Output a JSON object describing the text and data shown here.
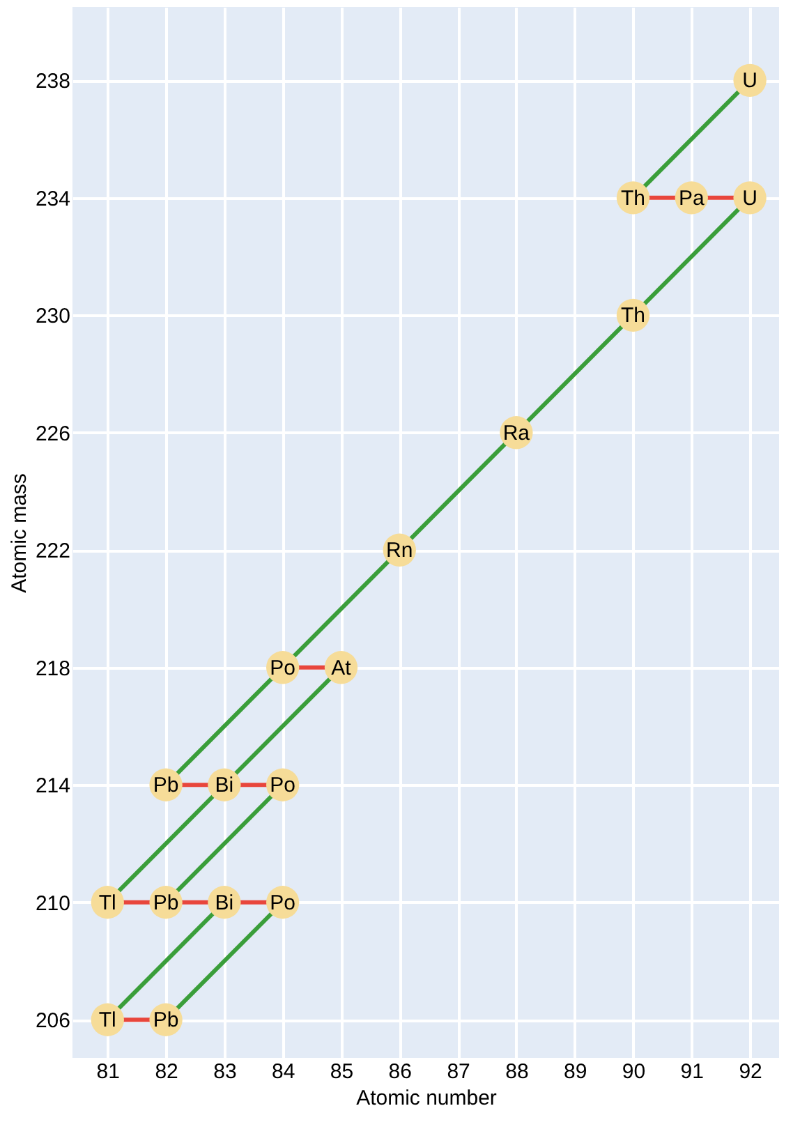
{
  "chart_data": {
    "type": "scatter",
    "xlabel": "Atomic number",
    "ylabel": "Atomic mass",
    "xlim": [
      80.4,
      92.5
    ],
    "ylim": [
      204.7,
      240.5
    ],
    "xticks": [
      81,
      82,
      83,
      84,
      85,
      86,
      87,
      88,
      89,
      90,
      91,
      92
    ],
    "yticks": [
      206,
      210,
      214,
      218,
      222,
      226,
      230,
      234,
      238
    ],
    "grid": true,
    "line_style": "solid",
    "series": [
      {
        "type": "line",
        "color": "#3a9e3a",
        "x": [
          92,
          90
        ],
        "values": [
          238,
          234
        ]
      },
      {
        "type": "line",
        "color": "#3a9e3a",
        "x": [
          92,
          90,
          88,
          86,
          84,
          82
        ],
        "values": [
          234,
          230,
          226,
          222,
          218,
          214
        ]
      },
      {
        "type": "line",
        "color": "#3a9e3a",
        "x": [
          85,
          83,
          81
        ],
        "values": [
          218,
          214,
          210
        ]
      },
      {
        "type": "line",
        "color": "#3a9e3a",
        "x": [
          84,
          82
        ],
        "values": [
          214,
          210
        ]
      },
      {
        "type": "line",
        "color": "#3a9e3a",
        "x": [
          83,
          81
        ],
        "values": [
          210,
          206
        ]
      },
      {
        "type": "line",
        "color": "#3a9e3a",
        "x": [
          84,
          82
        ],
        "values": [
          210,
          206
        ]
      },
      {
        "type": "line",
        "color": "#e8463c",
        "x": [
          90,
          91,
          92
        ],
        "values": [
          234,
          234,
          234
        ]
      },
      {
        "type": "line",
        "color": "#e8463c",
        "x": [
          84,
          85
        ],
        "values": [
          218,
          218
        ]
      },
      {
        "type": "line",
        "color": "#e8463c",
        "x": [
          82,
          83,
          84
        ],
        "values": [
          214,
          214,
          214
        ]
      },
      {
        "type": "line",
        "color": "#e8463c",
        "x": [
          81,
          82,
          83,
          84
        ],
        "values": [
          210,
          210,
          210,
          210
        ]
      },
      {
        "type": "line",
        "color": "#e8463c",
        "x": [
          81,
          82
        ],
        "values": [
          206,
          206
        ]
      },
      {
        "marker": "circle",
        "color": "#f6dc98",
        "x": [
          92,
          90,
          91,
          92,
          90,
          88,
          86,
          84,
          85,
          82,
          83,
          84,
          81,
          82,
          83,
          84,
          81,
          82
        ],
        "values": [
          238,
          234,
          234,
          234,
          230,
          226,
          222,
          218,
          218,
          214,
          214,
          214,
          210,
          210,
          210,
          210,
          206,
          206
        ]
      }
    ],
    "annotations": [
      {
        "text": "U",
        "x": 92,
        "y": 238
      },
      {
        "text": "Th",
        "x": 90,
        "y": 234
      },
      {
        "text": "Pa",
        "x": 91,
        "y": 234
      },
      {
        "text": "U",
        "x": 92,
        "y": 234
      },
      {
        "text": "Th",
        "x": 90,
        "y": 230
      },
      {
        "text": "Ra",
        "x": 88,
        "y": 226
      },
      {
        "text": "Rn",
        "x": 86,
        "y": 222
      },
      {
        "text": "Po",
        "x": 84,
        "y": 218
      },
      {
        "text": "At",
        "x": 85,
        "y": 218
      },
      {
        "text": "Pb",
        "x": 82,
        "y": 214
      },
      {
        "text": "Bi",
        "x": 83,
        "y": 214
      },
      {
        "text": "Po",
        "x": 84,
        "y": 214
      },
      {
        "text": "Tl",
        "x": 81,
        "y": 210
      },
      {
        "text": "Pb",
        "x": 82,
        "y": 210
      },
      {
        "text": "Bi",
        "x": 83,
        "y": 210
      },
      {
        "text": "Po",
        "x": 84,
        "y": 210
      },
      {
        "text": "Tl",
        "x": 81,
        "y": 206
      },
      {
        "text": "Pb",
        "x": 82,
        "y": 206
      }
    ]
  }
}
